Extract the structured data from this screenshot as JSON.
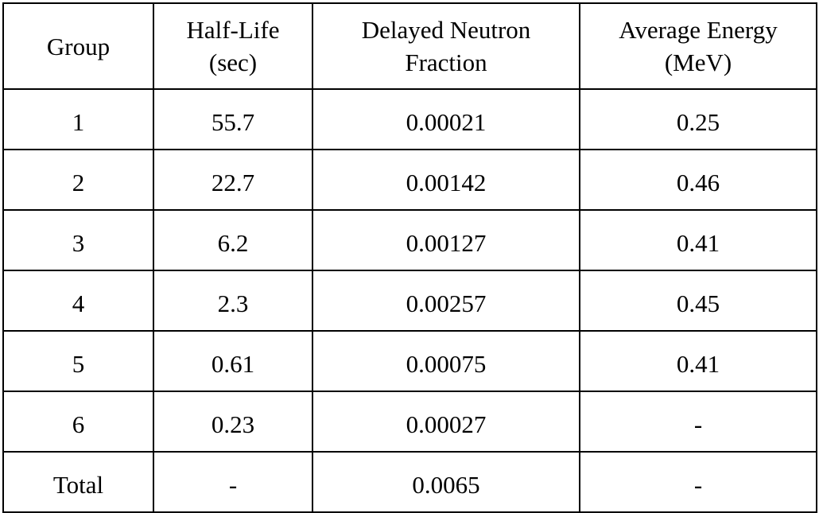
{
  "table": {
    "headers": {
      "group": "Group",
      "half_life_line1": "Half-Life",
      "half_life_line2": "(sec)",
      "fraction_line1": "Delayed Neutron",
      "fraction_line2": "Fraction",
      "energy_line1": "Average Energy",
      "energy_line2": "(MeV)"
    },
    "rows": [
      {
        "group": "1",
        "half_life": "55.7",
        "fraction": "0.00021",
        "energy": "0.25"
      },
      {
        "group": "2",
        "half_life": "22.7",
        "fraction": "0.00142",
        "energy": "0.46"
      },
      {
        "group": "3",
        "half_life": "6.2",
        "fraction": "0.00127",
        "energy": "0.41"
      },
      {
        "group": "4",
        "half_life": "2.3",
        "fraction": "0.00257",
        "energy": "0.45"
      },
      {
        "group": "5",
        "half_life": "0.61",
        "fraction": "0.00075",
        "energy": "0.41"
      },
      {
        "group": "6",
        "half_life": "0.23",
        "fraction": "0.00027",
        "energy": "-"
      },
      {
        "group": "Total",
        "half_life": "-",
        "fraction": "0.0065",
        "energy": "-"
      }
    ]
  }
}
